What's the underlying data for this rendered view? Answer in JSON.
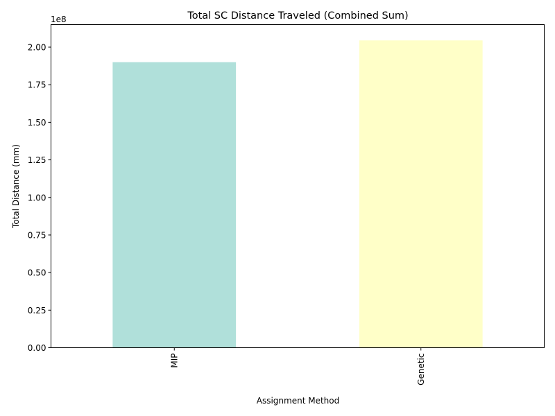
{
  "chart_data": {
    "type": "bar",
    "title": "Total SC Distance Traveled (Combined Sum)",
    "xlabel": "Assignment Method",
    "ylabel": "Total Distance (mm)",
    "offset_label": "1e8",
    "categories": [
      "MIP",
      "Genetic"
    ],
    "values": [
      190000000,
      204500000
    ],
    "colors": [
      "#b0e0da",
      "#ffffc8"
    ],
    "ylim": [
      0,
      215000000
    ],
    "yticks": [
      0,
      25000000,
      50000000,
      75000000,
      100000000,
      125000000,
      150000000,
      175000000,
      200000000
    ],
    "ytick_labels": [
      "0.00",
      "0.25",
      "0.50",
      "0.75",
      "1.00",
      "1.25",
      "1.50",
      "1.75",
      "2.00"
    ],
    "grid": false,
    "legend": "none"
  }
}
